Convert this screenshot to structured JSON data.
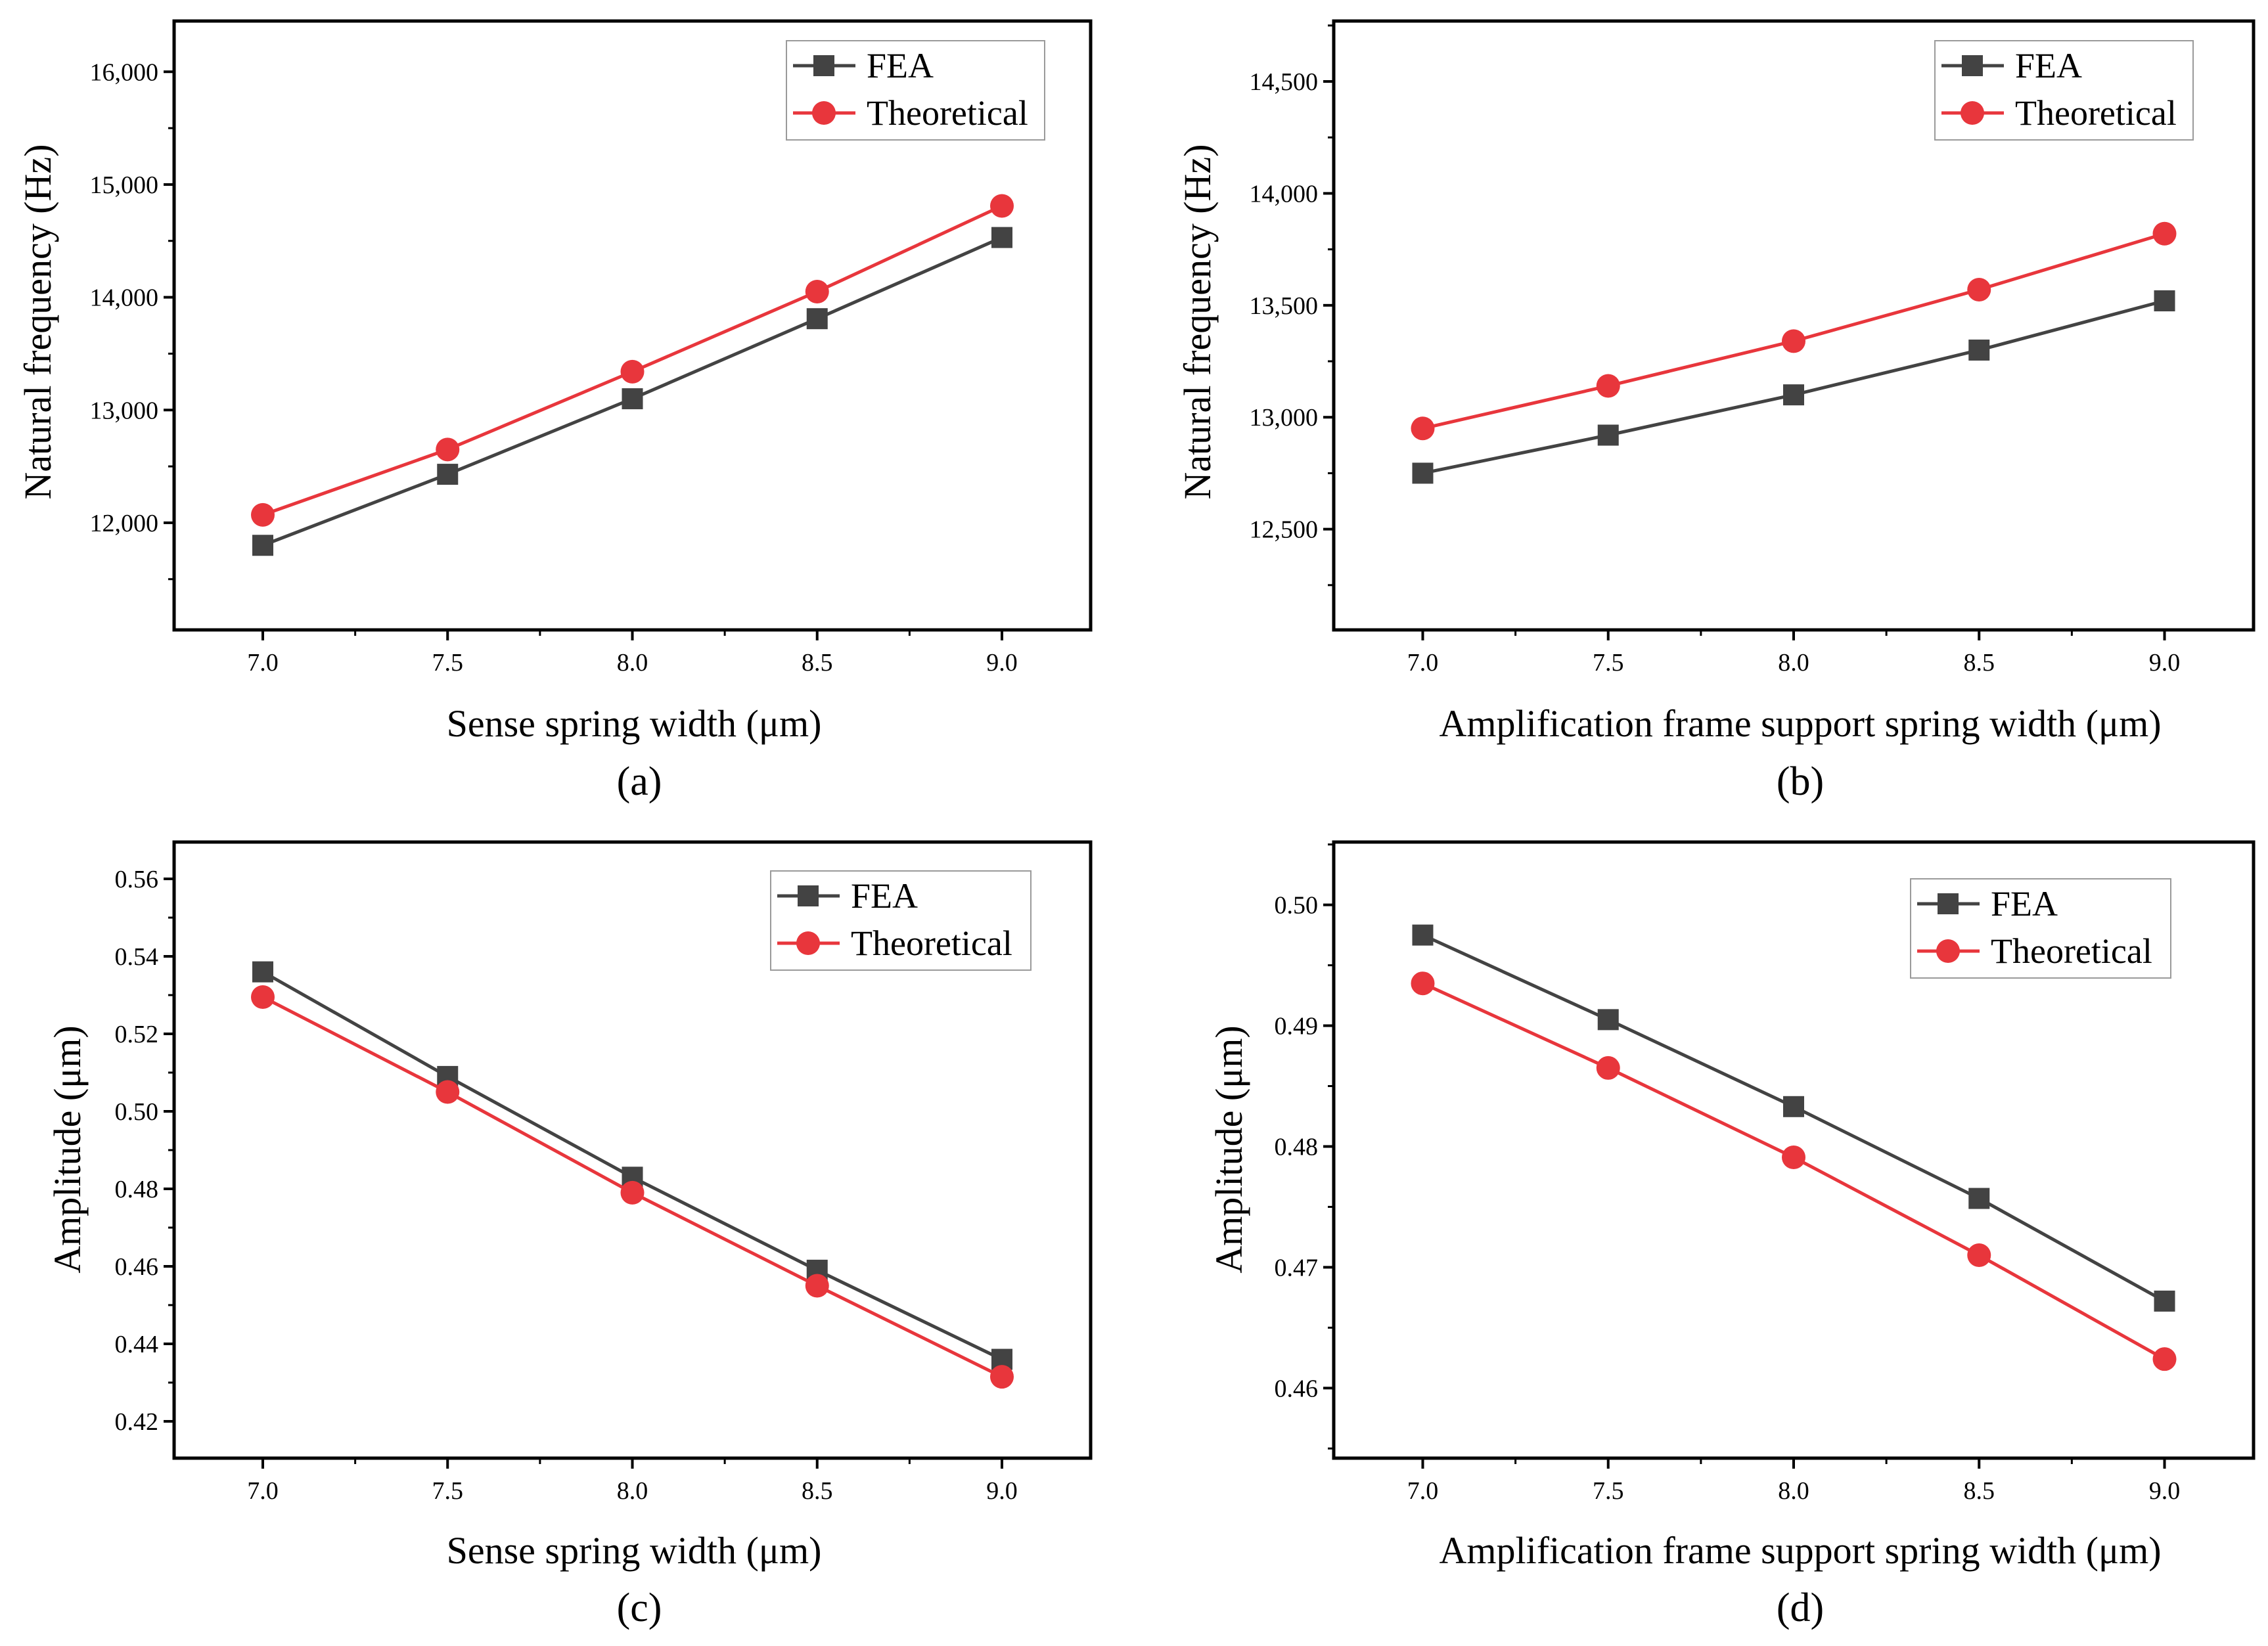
{
  "colors": {
    "fea": "#434343",
    "theoretical": "#e8363c",
    "axis": "#000000"
  },
  "chart_data": [
    {
      "panel": "(a)",
      "type": "line",
      "xlabel": "Sense spring width (μm)",
      "ylabel": "Natural frequency (Hz)",
      "x": [
        7.0,
        7.5,
        8.0,
        8.5,
        9.0
      ],
      "xticks": [
        "7.0",
        "7.5",
        "8.0",
        "8.5",
        "9.0"
      ],
      "xlim": [
        6.76,
        9.24
      ],
      "ylim": [
        11050,
        16450
      ],
      "yticks": [
        12000,
        13000,
        14000,
        15000,
        16000
      ],
      "ytick_labels": [
        "12,000",
        "13,000",
        "14,000",
        "15,000",
        "16,000"
      ],
      "legend_position": "top-right",
      "series": [
        {
          "name": "FEA",
          "marker": "square",
          "values": [
            11800,
            12430,
            13100,
            13810,
            14530
          ]
        },
        {
          "name": "Theoretical",
          "marker": "circle",
          "values": [
            12070,
            12650,
            13340,
            14050,
            14810
          ]
        }
      ]
    },
    {
      "panel": "(b)",
      "type": "line",
      "xlabel": "Amplification frame support spring width (μm)",
      "ylabel": "Natural frequency (Hz)",
      "x": [
        7.0,
        7.5,
        8.0,
        8.5,
        9.0
      ],
      "xticks": [
        "7.0",
        "7.5",
        "8.0",
        "8.5",
        "9.0"
      ],
      "xlim": [
        6.76,
        9.24
      ],
      "ylim": [
        12050,
        14770
      ],
      "yticks": [
        12500,
        13000,
        13500,
        14000,
        14500
      ],
      "ytick_labels": [
        "12,500",
        "13,000",
        "13,500",
        "14,000",
        "14,500"
      ],
      "legend_position": "top-right",
      "series": [
        {
          "name": "FEA",
          "marker": "square",
          "values": [
            12750,
            12920,
            13100,
            13300,
            13520
          ]
        },
        {
          "name": "Theoretical",
          "marker": "circle",
          "values": [
            12950,
            13140,
            13340,
            13570,
            13820
          ]
        }
      ]
    },
    {
      "panel": "(c)",
      "type": "line",
      "xlabel": "Sense spring width (μm)",
      "ylabel": "Amplitude (μm)",
      "x": [
        7.0,
        7.5,
        8.0,
        8.5,
        9.0
      ],
      "xticks": [
        "7.0",
        "7.5",
        "8.0",
        "8.5",
        "9.0"
      ],
      "xlim": [
        6.76,
        9.24
      ],
      "ylim": [
        0.4105,
        0.5695
      ],
      "yticks": [
        0.42,
        0.44,
        0.46,
        0.48,
        0.5,
        0.52,
        0.54,
        0.56
      ],
      "ytick_labels": [
        "0.42",
        "0.44",
        "0.46",
        "0.48",
        "0.50",
        "0.52",
        "0.54",
        "0.56"
      ],
      "legend_position": "top-right",
      "series": [
        {
          "name": "FEA",
          "marker": "square",
          "values": [
            0.536,
            0.509,
            0.483,
            0.459,
            0.436
          ]
        },
        {
          "name": "Theoretical",
          "marker": "circle",
          "values": [
            0.5295,
            0.505,
            0.479,
            0.455,
            0.4315
          ]
        }
      ]
    },
    {
      "panel": "(d)",
      "type": "line",
      "xlabel": "Amplification frame support spring width (μm)",
      "ylabel": "Amplitude (μm)",
      "x": [
        7.0,
        7.5,
        8.0,
        8.5,
        9.0
      ],
      "xticks": [
        "7.0",
        "7.5",
        "8.0",
        "8.5",
        "9.0"
      ],
      "xlim": [
        6.76,
        9.24
      ],
      "ylim": [
        0.4542,
        0.5052
      ],
      "yticks": [
        0.46,
        0.47,
        0.48,
        0.49,
        0.5
      ],
      "ytick_labels": [
        "0.46",
        "0.47",
        "0.48",
        "0.49",
        "0.50"
      ],
      "legend_position": "top-right",
      "series": [
        {
          "name": "FEA",
          "marker": "square",
          "values": [
            0.4975,
            0.4905,
            0.4833,
            0.4757,
            0.4672
          ]
        },
        {
          "name": "Theoretical",
          "marker": "circle",
          "values": [
            0.4935,
            0.4865,
            0.4791,
            0.471,
            0.4624
          ]
        }
      ]
    }
  ]
}
